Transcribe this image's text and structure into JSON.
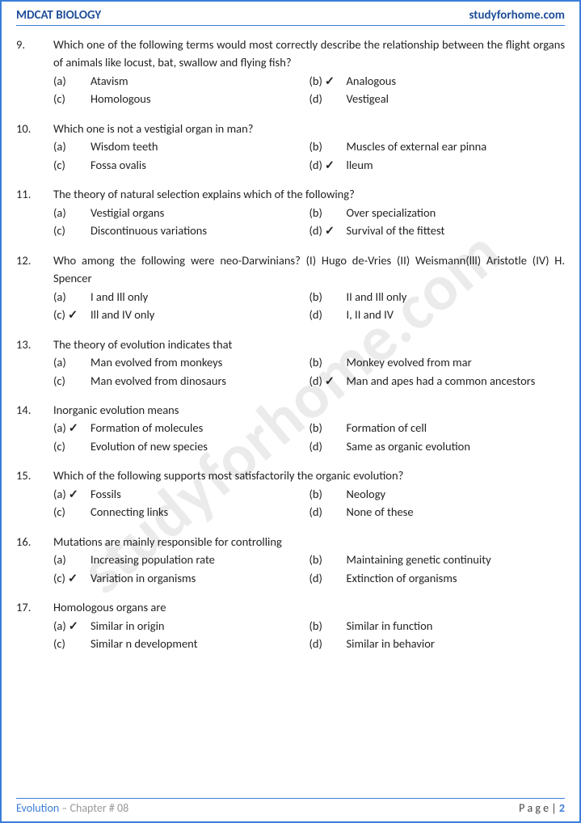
{
  "header": {
    "left": "MDCAT BIOLOGY",
    "right": "studyforhome.com"
  },
  "watermark": "studyforhome.com",
  "footer": {
    "chapter": "Evolution",
    "sep": " – ",
    "chapnum": "Chapter # 08",
    "page_label": "P a g e  | ",
    "page_num": "2"
  },
  "questions": [
    {
      "num": "9.",
      "text": "Which one of the following terms would most correctly describe the relationship between the flight organs of animals like locust, bat, swallow and flying fish?",
      "opts": [
        {
          "l": "(a)",
          "t": "Atavism",
          "c": false
        },
        {
          "l": "(b)",
          "t": "Analogous",
          "c": true
        },
        {
          "l": "(c)",
          "t": "Homologous",
          "c": false
        },
        {
          "l": "(d)",
          "t": "Vestigeal",
          "c": false
        }
      ]
    },
    {
      "num": "10.",
      "text": "Which one is not a vestigial organ in man?",
      "opts": [
        {
          "l": "(a)",
          "t": "Wisdom teeth",
          "c": false
        },
        {
          "l": "(b)",
          "t": "Muscles of external ear pinna",
          "c": false
        },
        {
          "l": "(c)",
          "t": "Fossa ovalis",
          "c": false
        },
        {
          "l": "(d)",
          "t": "lleum",
          "c": true
        }
      ]
    },
    {
      "num": "11.",
      "text": "The theory of natural selection explains which of the following?",
      "opts": [
        {
          "l": "(a)",
          "t": "Vestigial organs",
          "c": false
        },
        {
          "l": "(b)",
          "t": "Over specialization",
          "c": false
        },
        {
          "l": "(c)",
          "t": "Discontinuous variations",
          "c": false
        },
        {
          "l": "(d)",
          "t": "Survival of the fittest",
          "c": true
        }
      ]
    },
    {
      "num": "12.",
      "text": "Who among the following were neo-Darwinians? (I) Hugo de-Vries (II) Weismann(lll) Aristotle (IV) H. Spencer",
      "opts": [
        {
          "l": "(a)",
          "t": "I and Ill only",
          "c": false
        },
        {
          "l": "(b)",
          "t": "II and Ill only",
          "c": false
        },
        {
          "l": "(c)",
          "t": "Ill and IV only",
          "c": true
        },
        {
          "l": "(d)",
          "t": "I, II and IV",
          "c": false
        }
      ]
    },
    {
      "num": "13.",
      "text": "The theory of evolution indicates that",
      "opts": [
        {
          "l": "(a)",
          "t": "Man evolved from monkeys",
          "c": false
        },
        {
          "l": "(b)",
          "t": "Monkey evolved from mar",
          "c": false
        },
        {
          "l": "(c)",
          "t": "Man evolved from dinosaurs",
          "c": false
        },
        {
          "l": "(d)",
          "t": "Man and apes had a common ancestors",
          "c": true
        }
      ]
    },
    {
      "num": "14.",
      "text": "Inorganic evolution means",
      "opts": [
        {
          "l": "(a)",
          "t": "Formation of molecules",
          "c": true
        },
        {
          "l": "(b)",
          "t": "Formation of cell",
          "c": false
        },
        {
          "l": "(c)",
          "t": "Evolution of new species",
          "c": false
        },
        {
          "l": "(d)",
          "t": "Same as organic evolution",
          "c": false
        }
      ]
    },
    {
      "num": "15.",
      "text": "Which of the following supports most satisfactorily the organic evolution?",
      "opts": [
        {
          "l": "(a)",
          "t": "Fossils",
          "c": true
        },
        {
          "l": "(b)",
          "t": "Neology",
          "c": false
        },
        {
          "l": "(c)",
          "t": "Connecting links",
          "c": false
        },
        {
          "l": "(d)",
          "t": "None of these",
          "c": false
        }
      ]
    },
    {
      "num": "16.",
      "text": "Mutations are mainly responsible for controlling",
      "opts": [
        {
          "l": "(a)",
          "t": "Increasing population rate",
          "c": false
        },
        {
          "l": "(b)",
          "t": "Maintaining genetic continuity",
          "c": false
        },
        {
          "l": "(c)",
          "t": "Variation in organisms",
          "c": true
        },
        {
          "l": "(d)",
          "t": "Extinction of organisms",
          "c": false
        }
      ]
    },
    {
      "num": "17.",
      "text": "Homologous organs are",
      "opts": [
        {
          "l": "(a)",
          "t": "Similar in origin",
          "c": true
        },
        {
          "l": "(b)",
          "t": "Similar in function",
          "c": false
        },
        {
          "l": "(c)",
          "t": "Similar n development",
          "c": false
        },
        {
          "l": "(d)",
          "t": "Similar in behavior",
          "c": false
        }
      ]
    }
  ]
}
